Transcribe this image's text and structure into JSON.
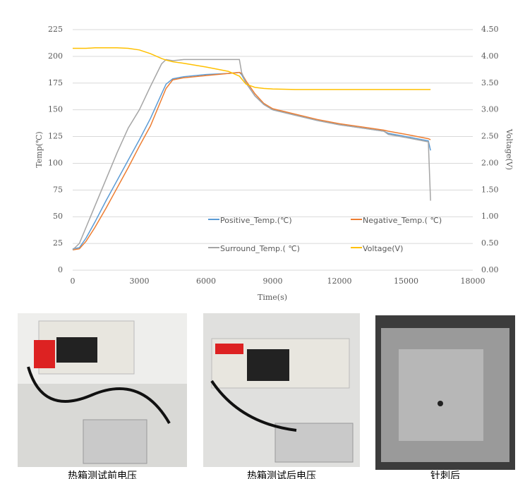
{
  "chart_data": {
    "type": "line",
    "x_label": "Time(s)",
    "y_label": "Temp(℃)",
    "y2_label": "Voltage(V)",
    "xlim": [
      0,
      18000
    ],
    "xticks": [
      0,
      3000,
      6000,
      9000,
      12000,
      15000,
      18000
    ],
    "ylim": [
      0,
      225
    ],
    "yticks": [
      0,
      25,
      50,
      75,
      100,
      125,
      150,
      175,
      200,
      225
    ],
    "y2lim": [
      0,
      4.5
    ],
    "y2ticks": [
      {
        "value": 0,
        "label": "0.00"
      },
      {
        "value": 0.5,
        "label": "0.50"
      },
      {
        "value": 1,
        "label": "1.00"
      },
      {
        "value": 1.5,
        "label": "1.50"
      },
      {
        "value": 2,
        "label": "2.00"
      },
      {
        "value": 2.5,
        "label": "2.50"
      },
      {
        "value": 3,
        "label": "3.00"
      },
      {
        "value": 3.5,
        "label": "3.50"
      },
      {
        "value": 4,
        "label": "4.00"
      },
      {
        "value": 4.5,
        "label": "4.50"
      }
    ],
    "grid": true,
    "legend": "inside",
    "x": [
      0,
      300,
      600,
      1000,
      1500,
      2000,
      2500,
      3000,
      3500,
      4000,
      4200,
      4500,
      5000,
      6000,
      7000,
      7500,
      7600,
      7800,
      8200,
      8600,
      9000,
      10000,
      11000,
      12000,
      13000,
      14000,
      14200,
      15000,
      16000,
      16100
    ],
    "series": [
      {
        "name": "Positive_Temp.(℃)",
        "color": "#5b9bd5",
        "values": [
          20,
          21,
          30,
          45,
          65,
          84,
          103,
          122,
          142,
          165,
          174,
          179,
          181,
          183,
          184,
          185,
          183,
          175,
          163,
          155,
          150,
          145,
          140,
          136,
          133,
          130,
          128,
          125,
          121,
          112
        ]
      },
      {
        "name": "Negative_Temp.( ℃)",
        "color": "#ed7d31",
        "values": [
          19,
          20,
          27,
          40,
          58,
          77,
          96,
          116,
          135,
          160,
          170,
          178,
          180,
          182,
          184,
          185,
          184,
          177,
          165,
          156,
          151,
          146,
          141,
          137,
          134,
          131,
          130,
          127,
          123,
          122
        ]
      },
      {
        "name": "Surround_Temp.( ℃)",
        "color": "#a5a5a5",
        "values": [
          19,
          25,
          40,
          60,
          85,
          110,
          133,
          150,
          172,
          193,
          197,
          196,
          197,
          197,
          197,
          197,
          185,
          175,
          163,
          155,
          150,
          145,
          140,
          136,
          133,
          130,
          127,
          124,
          120,
          65
        ]
      },
      {
        "name": "Voltage(V)",
        "color": "#ffc000",
        "axis": "y2",
        "values": [
          4.15,
          4.15,
          4.15,
          4.16,
          4.16,
          4.16,
          4.15,
          4.12,
          4.05,
          3.96,
          3.93,
          3.9,
          3.87,
          3.8,
          3.72,
          3.63,
          3.58,
          3.48,
          3.42,
          3.4,
          3.39,
          3.38,
          3.38,
          3.38,
          3.38,
          3.38,
          3.38,
          3.38,
          3.38,
          3.38
        ]
      }
    ]
  },
  "photos": [
    {
      "caption": "热箱测试前电压"
    },
    {
      "caption": "热箱测试后电压"
    },
    {
      "caption": "针刺后"
    }
  ]
}
